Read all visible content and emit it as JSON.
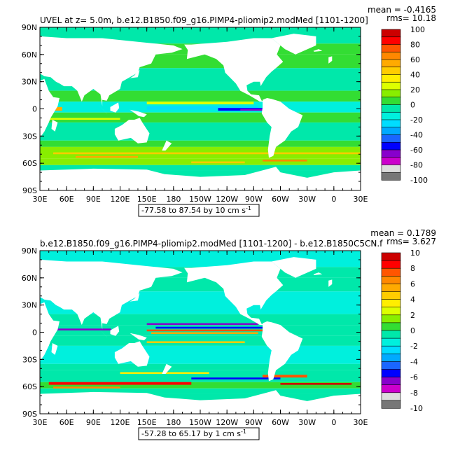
{
  "panels": [
    {
      "title": "UVEL at z=    5.0m, b.e12.B1850.f09_g16.PIMP4-pliomip2.modMed [1101-1200]",
      "mean_label": "mean = -0.4165",
      "rms_label": "rms= 10.18",
      "range_label": "-77.58 to 87.54 by 10 cm s",
      "range_sup": "-1",
      "colorbar": {
        "labels": [
          "100",
          "80",
          "60",
          "40",
          "20",
          "0",
          "-20",
          "-40",
          "-60",
          "-80",
          "-100"
        ]
      }
    },
    {
      "title": "b.e12.B1850.f09_g16.PIMP4-pliomip2.modMed [1101-1200] - b.e12.B1850C5CN.f",
      "mean_label": "mean = 0.1789",
      "rms_label": "rms= 3.627",
      "range_label": "-57.28 to 65.17 by 1 cm s",
      "range_sup": "-1",
      "colorbar": {
        "labels": [
          "10",
          "8",
          "6",
          "4",
          "2",
          "0",
          "-2",
          "-4",
          "-6",
          "-8",
          "-10"
        ]
      }
    }
  ],
  "axes": {
    "lat_labels": [
      "90N",
      "60N",
      "30N",
      "0",
      "30S",
      "60S",
      "90S"
    ],
    "lon_labels": [
      "30E",
      "60E",
      "90E",
      "120E",
      "150E",
      "180",
      "150W",
      "120W",
      "90W",
      "60W",
      "30W",
      "0",
      "30E"
    ]
  },
  "colors": {
    "scale": [
      "#777777",
      "#dddddd",
      "#cc00cc",
      "#8800cc",
      "#0000ff",
      "#1a66ff",
      "#00aaff",
      "#00ddff",
      "#00f0dd",
      "#00e8aa",
      "#33dd33",
      "#88ee00",
      "#ddff00",
      "#ffee00",
      "#ffcc00",
      "#ffaa00",
      "#ff8800",
      "#ff5500",
      "#ff0000",
      "#cc0000"
    ],
    "land": "#ffffff"
  }
}
